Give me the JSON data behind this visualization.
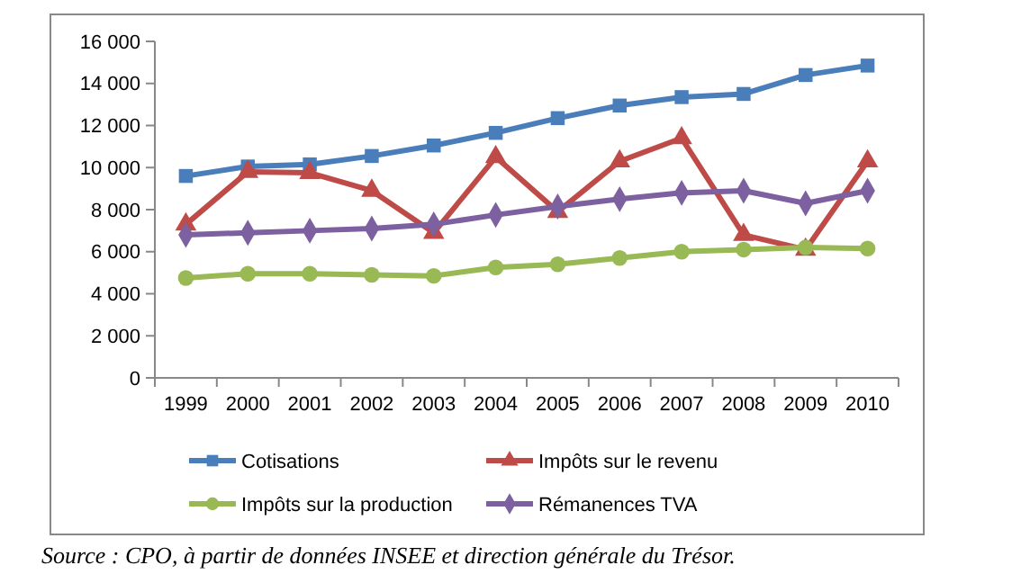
{
  "chart_data": {
    "type": "line",
    "categories": [
      "1999",
      "2000",
      "2001",
      "2002",
      "2003",
      "2004",
      "2005",
      "2006",
      "2007",
      "2008",
      "2009",
      "2010"
    ],
    "series": [
      {
        "name": "Cotisations",
        "color": "#4a7ebb",
        "marker": "square",
        "values": [
          9600,
          10050,
          10150,
          10550,
          11050,
          11650,
          12350,
          12950,
          13350,
          13500,
          14400,
          14850
        ]
      },
      {
        "name": "Impôts sur le revenu",
        "color": "#be4b48",
        "marker": "triangle",
        "values": [
          7300,
          9800,
          9750,
          8900,
          6900,
          10500,
          7900,
          10300,
          11400,
          6800,
          6100,
          10300
        ]
      },
      {
        "name": "Impôts sur la production",
        "color": "#98b954",
        "marker": "circle",
        "values": [
          4750,
          4950,
          4950,
          4900,
          4850,
          5250,
          5400,
          5700,
          6000,
          6100,
          6200,
          6150
        ]
      },
      {
        "name": "Rémanences TVA",
        "color": "#7d60a0",
        "marker": "diamond",
        "values": [
          6800,
          6900,
          7000,
          7100,
          7300,
          7750,
          8150,
          8500,
          8800,
          8900,
          8300,
          8900
        ]
      }
    ],
    "ylim": [
      0,
      16000
    ],
    "yticks": [
      {
        "value": 0,
        "label": "0"
      },
      {
        "value": 2000,
        "label": "2 000"
      },
      {
        "value": 4000,
        "label": "4 000"
      },
      {
        "value": 6000,
        "label": "6 000"
      },
      {
        "value": 8000,
        "label": "8 000"
      },
      {
        "value": 10000,
        "label": "10 000"
      },
      {
        "value": 12000,
        "label": "12 000"
      },
      {
        "value": 14000,
        "label": "14 000"
      },
      {
        "value": 16000,
        "label": "16 000"
      }
    ],
    "grid": false,
    "legend": "bottom",
    "line_style": "solid",
    "annotations": [
      "Source : CPO, à partir de données INSEE et direction générale du Trésor."
    ]
  }
}
